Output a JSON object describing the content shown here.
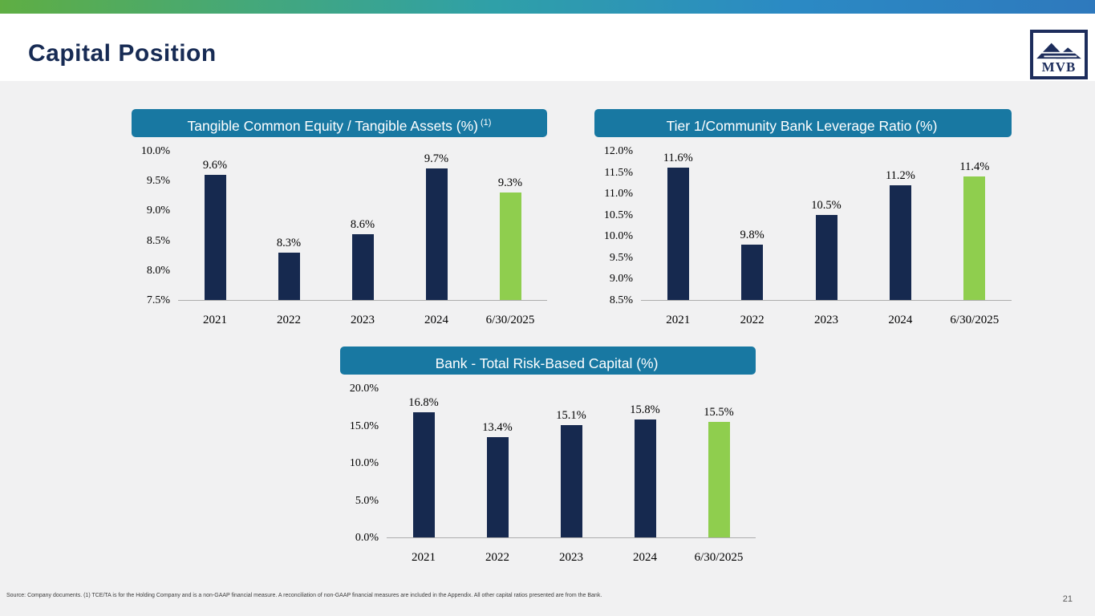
{
  "slide": {
    "title": "Capital Position",
    "page_number": "21",
    "footer": "Source: Company documents. (1) TCE/TA is for the Holding Company and is a non-GAAP financial measure. A reconciliation of non-GAAP financial measures are included in the Appendix. All other capital ratios presented are from the Bank.",
    "logo_text": "MVB"
  },
  "colors": {
    "primary_bar": "#16294f",
    "highlight_bar": "#8fce4e",
    "title_bar_bg": "#1878a2",
    "accent_navy": "#172b54",
    "axis_line": "#adadad"
  },
  "chart_data": [
    {
      "type": "bar",
      "title": "Tangible Common Equity / Tangible Assets (%)",
      "title_superscript": "(1)",
      "categories": [
        "2021",
        "2022",
        "2023",
        "2024",
        "6/30/2025"
      ],
      "values": [
        9.6,
        8.3,
        8.6,
        9.7,
        9.3
      ],
      "labels": [
        "9.6%",
        "8.3%",
        "8.6%",
        "9.7%",
        "9.3%"
      ],
      "ylim": [
        7.5,
        10.0
      ],
      "ticks": [
        "10.0%",
        "9.5%",
        "9.0%",
        "8.5%",
        "8.0%",
        "7.5%"
      ],
      "legend": "none",
      "grid": false,
      "highlight_last": true
    },
    {
      "type": "bar",
      "title": "Tier 1/Community Bank Leverage Ratio (%)",
      "title_superscript": "",
      "categories": [
        "2021",
        "2022",
        "2023",
        "2024",
        "6/30/2025"
      ],
      "values": [
        11.6,
        9.8,
        10.5,
        11.2,
        11.4
      ],
      "labels": [
        "11.6%",
        "9.8%",
        "10.5%",
        "11.2%",
        "11.4%"
      ],
      "ylim": [
        8.5,
        12.0
      ],
      "ticks": [
        "12.0%",
        "11.5%",
        "11.0%",
        "10.5%",
        "10.0%",
        "9.5%",
        "9.0%",
        "8.5%"
      ],
      "legend": "none",
      "grid": false,
      "highlight_last": true
    },
    {
      "type": "bar",
      "title": "Bank - Total Risk-Based Capital (%)",
      "title_superscript": "",
      "categories": [
        "2021",
        "2022",
        "2023",
        "2024",
        "6/30/2025"
      ],
      "values": [
        16.8,
        13.4,
        15.1,
        15.8,
        15.5
      ],
      "labels": [
        "16.8%",
        "13.4%",
        "15.1%",
        "15.8%",
        "15.5%"
      ],
      "ylim": [
        0.0,
        20.0
      ],
      "ticks": [
        "20.0%",
        "15.0%",
        "10.0%",
        "5.0%",
        "0.0%"
      ],
      "legend": "none",
      "grid": false,
      "highlight_last": true
    }
  ]
}
